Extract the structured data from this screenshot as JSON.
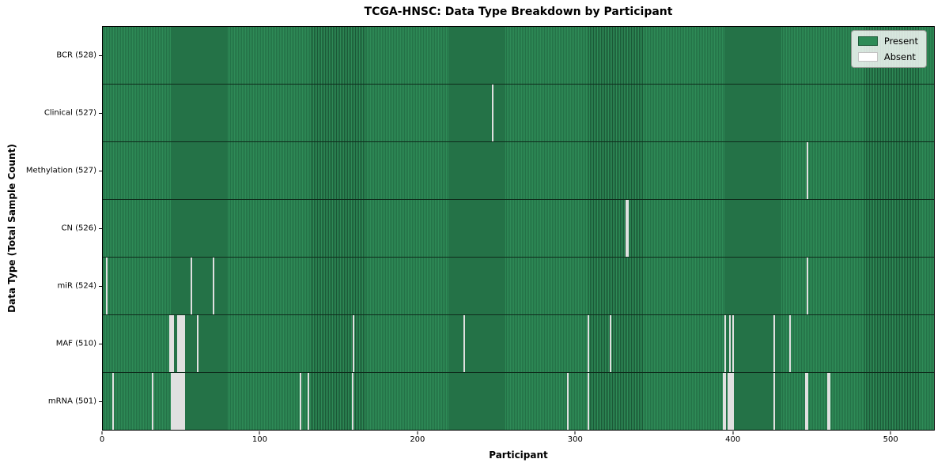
{
  "colors": {
    "present": "#2e8b57",
    "present_edge": "#1b5937",
    "absent": "#f7f7f7",
    "background": "#ffffff"
  },
  "legend": {
    "present_label": "Present",
    "absent_label": "Absent"
  },
  "chart_data": {
    "type": "heatmap",
    "title": "TCGA-HNSC: Data Type Breakdown by Participant",
    "xlabel": "Participant",
    "ylabel": "Data Type (Total Sample Count)",
    "x_ticks": [
      0,
      100,
      200,
      300,
      400,
      500
    ],
    "xlim": [
      0,
      528
    ],
    "total_participants": 528,
    "grid": false,
    "legend_labels": [
      "Present",
      "Absent"
    ],
    "legend_position": "upper right",
    "rows": [
      {
        "name": "bcr",
        "label": "BCR (528)",
        "present_count": 528,
        "absent_participants": []
      },
      {
        "name": "clinical",
        "label": "Clinical (527)",
        "present_count": 527,
        "absent_participants": [
          247
        ]
      },
      {
        "name": "methylation",
        "label": "Methylation (527)",
        "present_count": 527,
        "absent_participants": [
          447
        ]
      },
      {
        "name": "cn",
        "label": "CN (526)",
        "present_count": 526,
        "absent_participants": [
          332,
          333
        ]
      },
      {
        "name": "mir",
        "label": "miR (524)",
        "present_count": 524,
        "absent_participants": [
          2,
          56,
          70,
          447
        ]
      },
      {
        "name": "maf",
        "label": "MAF (510)",
        "present_count": 510,
        "absent_participants": [
          42,
          43,
          44,
          47,
          48,
          49,
          50,
          51,
          60,
          159,
          229,
          308,
          322,
          395,
          398,
          400,
          426,
          436
        ]
      },
      {
        "name": "mrna",
        "label": "mRNA (501)",
        "present_count": 501,
        "absent_participants": [
          6,
          31,
          43,
          44,
          45,
          46,
          47,
          48,
          49,
          50,
          51,
          125,
          130,
          158,
          295,
          308,
          394,
          395,
          397,
          398,
          399,
          400,
          426,
          446,
          447,
          460,
          461
        ]
      }
    ]
  }
}
